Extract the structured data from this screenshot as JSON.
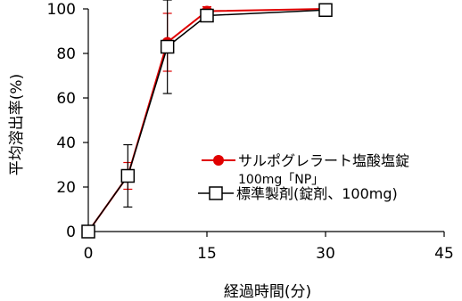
{
  "chart_data": {
    "type": "line",
    "title": "",
    "xlabel": "経過時間(分)",
    "ylabel": "平均溶出率(%)",
    "xlim": [
      0,
      45
    ],
    "ylim": [
      0,
      100
    ],
    "xticks": [
      0,
      15,
      30,
      45
    ],
    "yticks": [
      0,
      20,
      40,
      60,
      80,
      100
    ],
    "grid": false,
    "legend_position": "right",
    "series": [
      {
        "name": "サルポグレラート塩酸塩錠",
        "name_line2": "100mg「NP」",
        "color": "#e00000",
        "marker": "filled-circle",
        "x": [
          0,
          5,
          10,
          15,
          30
        ],
        "y": [
          0,
          25,
          85,
          99,
          100
        ],
        "error": [
          0,
          6,
          13,
          2,
          1
        ]
      },
      {
        "name": "標準製剤(錠剤、100mg)",
        "color": "#000000",
        "marker": "open-square",
        "x": [
          0,
          5,
          10,
          15,
          30
        ],
        "y": [
          0,
          25,
          83,
          97,
          99.5
        ],
        "error": [
          0,
          14,
          21,
          0,
          0
        ]
      }
    ]
  }
}
